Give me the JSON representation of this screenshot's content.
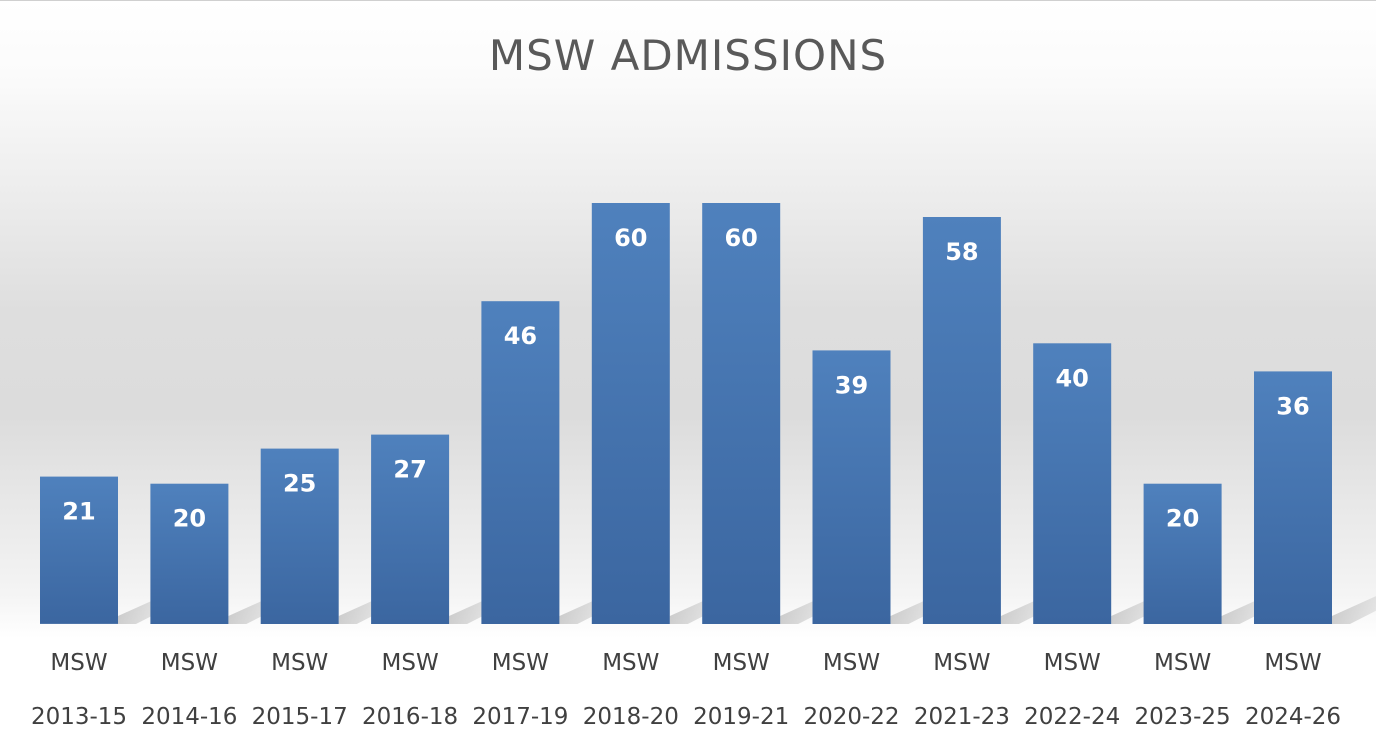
{
  "chart_data": {
    "type": "bar",
    "title": "MSW ADMISSIONS",
    "xlabel": "",
    "ylabel": "",
    "categories": [
      [
        "MSW",
        "2013-15"
      ],
      [
        "MSW",
        "2014-16"
      ],
      [
        "MSW",
        "2015-17"
      ],
      [
        "MSW",
        "2016-18"
      ],
      [
        "MSW",
        "2017-19"
      ],
      [
        "MSW",
        "2018-20"
      ],
      [
        "MSW",
        "2019-21"
      ],
      [
        "MSW",
        "2020-22"
      ],
      [
        "MSW",
        "2021-23"
      ],
      [
        "MSW",
        "2022-24"
      ],
      [
        "MSW",
        "2023-25"
      ],
      [
        "MSW",
        "2024-26"
      ]
    ],
    "values": [
      21,
      20,
      25,
      27,
      46,
      60,
      60,
      39,
      58,
      40,
      20,
      36
    ],
    "ylim": [
      0,
      60
    ],
    "grid": false,
    "legend": "none",
    "data_labels": "inside-top",
    "colors": {
      "bar_top": "#4f81bd",
      "bar_bottom": "#3b66a0",
      "title": "#595959",
      "label": "#ffffff",
      "tick": "#404040"
    }
  }
}
